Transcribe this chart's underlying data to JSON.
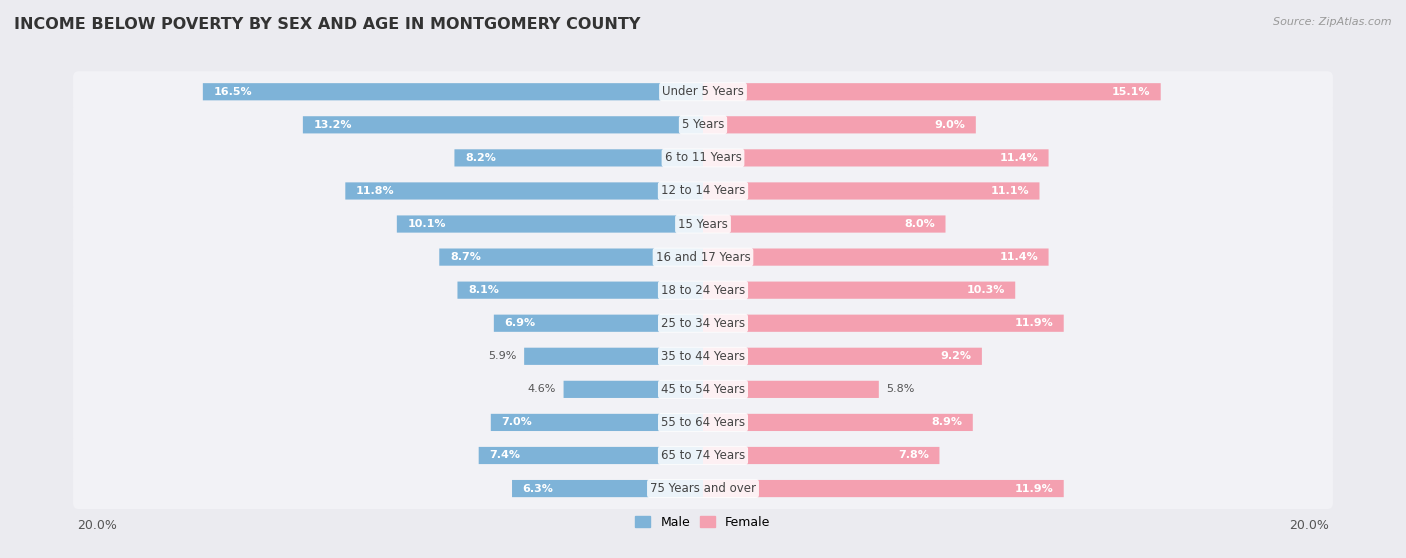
{
  "title": "INCOME BELOW POVERTY BY SEX AND AGE IN MONTGOMERY COUNTY",
  "source": "Source: ZipAtlas.com",
  "categories": [
    "Under 5 Years",
    "5 Years",
    "6 to 11 Years",
    "12 to 14 Years",
    "15 Years",
    "16 and 17 Years",
    "18 to 24 Years",
    "25 to 34 Years",
    "35 to 44 Years",
    "45 to 54 Years",
    "55 to 64 Years",
    "65 to 74 Years",
    "75 Years and over"
  ],
  "male_values": [
    16.5,
    13.2,
    8.2,
    11.8,
    10.1,
    8.7,
    8.1,
    6.9,
    5.9,
    4.6,
    7.0,
    7.4,
    6.3
  ],
  "female_values": [
    15.1,
    9.0,
    11.4,
    11.1,
    8.0,
    11.4,
    10.3,
    11.9,
    9.2,
    5.8,
    8.9,
    7.8,
    11.9
  ],
  "male_color": "#7eb3d8",
  "female_color": "#f4a0b0",
  "male_label": "Male",
  "female_label": "Female",
  "axis_max": 20.0,
  "bg_color": "#ebebf0",
  "row_bg_color": "#f7f7fa",
  "row_bg_color_alt": "#e8e8ee",
  "title_fontsize": 11.5,
  "label_fontsize": 9,
  "value_fontsize": 8,
  "source_fontsize": 8,
  "legend_fontsize": 9,
  "category_fontsize": 8.5,
  "inside_threshold": 6.0
}
